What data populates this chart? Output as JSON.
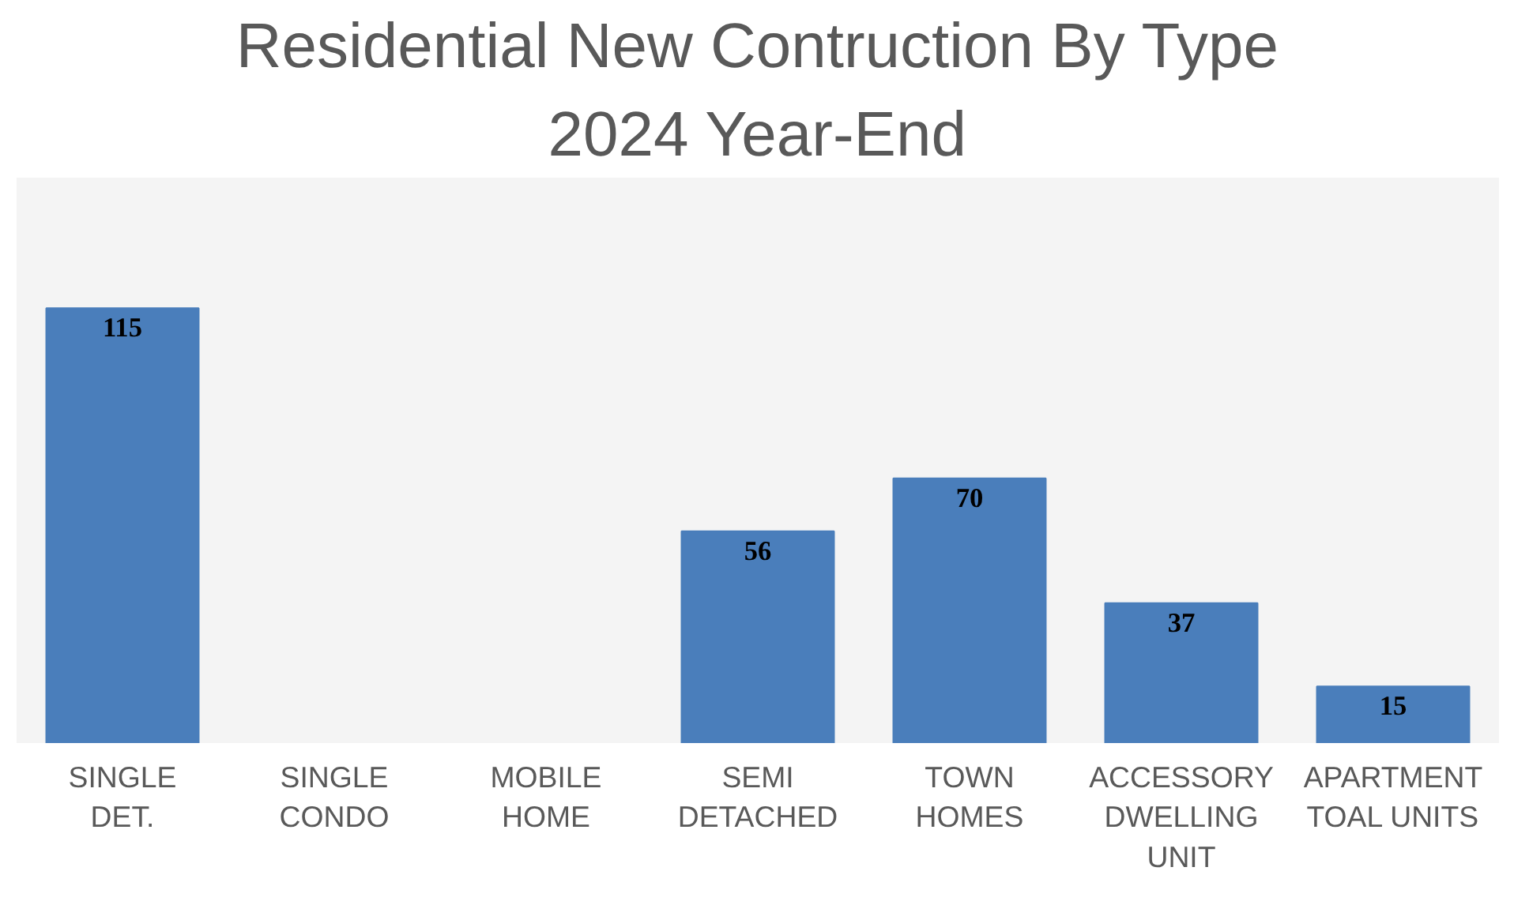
{
  "chart_data": {
    "type": "bar",
    "title": "Residential New Contruction By Type",
    "subtitle": "2024 Year-End",
    "categories": [
      "SINGLE\nDET.",
      "SINGLE\nCONDO",
      "MOBILE\nHOME",
      "SEMI\nDETACHED",
      "TOWN\nHOMES",
      "ACCESSORY\nDWELLING\nUNIT",
      "APARTMENT\nTOAL UNITS"
    ],
    "values": [
      115,
      null,
      null,
      56,
      70,
      37,
      15
    ],
    "color": "#4a7ebb",
    "data_labels": true,
    "grid": false
  }
}
